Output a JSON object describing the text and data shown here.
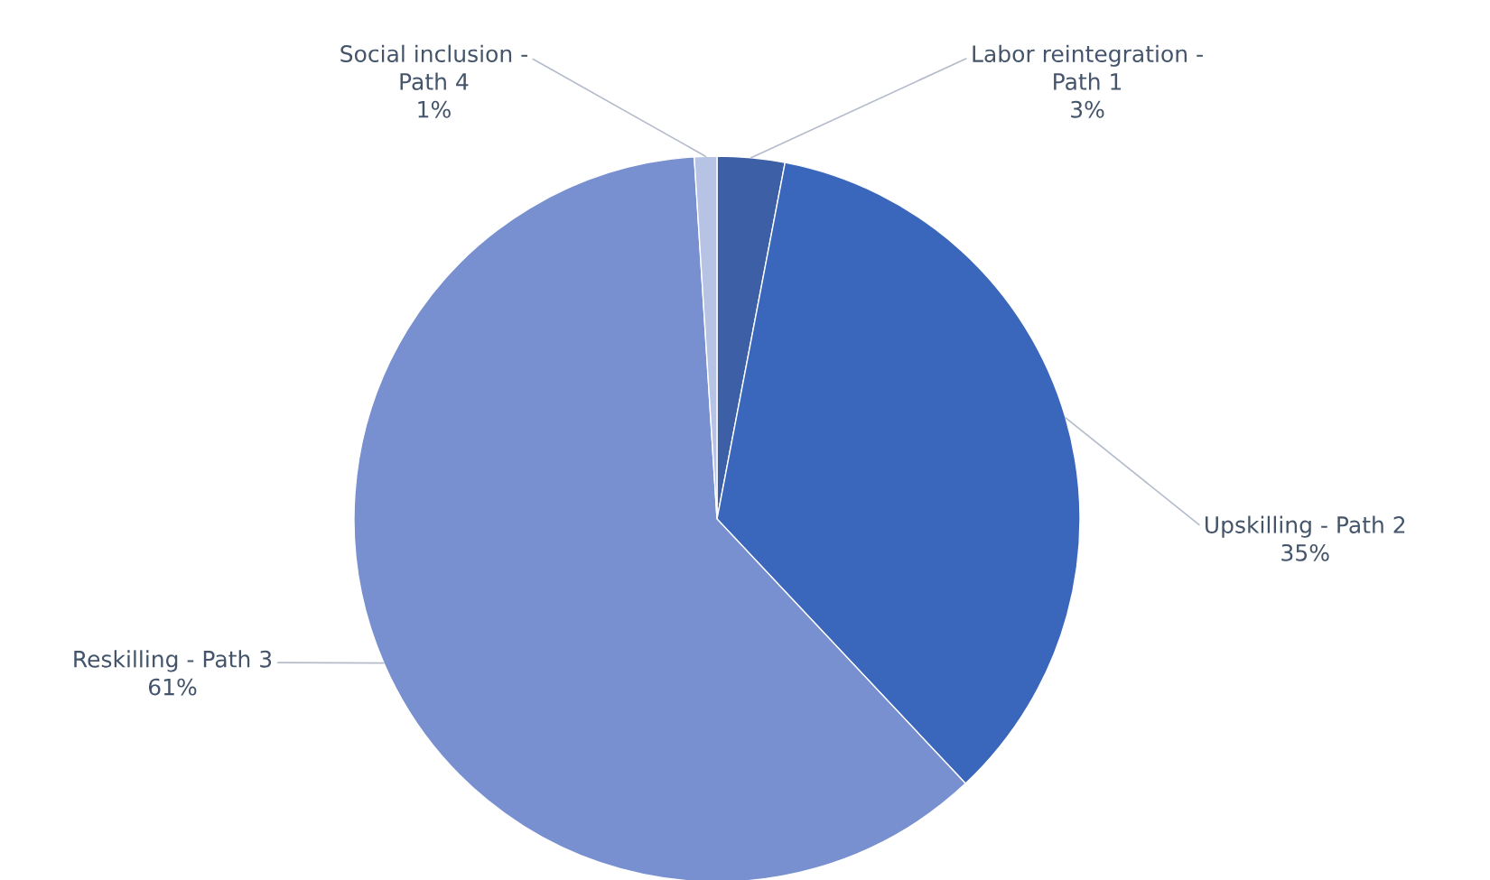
{
  "chart_data": {
    "type": "pie",
    "categories": [
      "Labor reintegration - Path 1",
      "Upskilling - Path 2",
      "Reskilling - Path 3",
      "Social inclusion - Path 4"
    ],
    "values": [
      3,
      35,
      61,
      1
    ],
    "value_labels": [
      "3%",
      "35%",
      "61%",
      "1%"
    ],
    "colors": [
      "#3d5fa6",
      "#3a66bb",
      "#7890cf",
      "#b6c3e5"
    ],
    "legend": false
  }
}
